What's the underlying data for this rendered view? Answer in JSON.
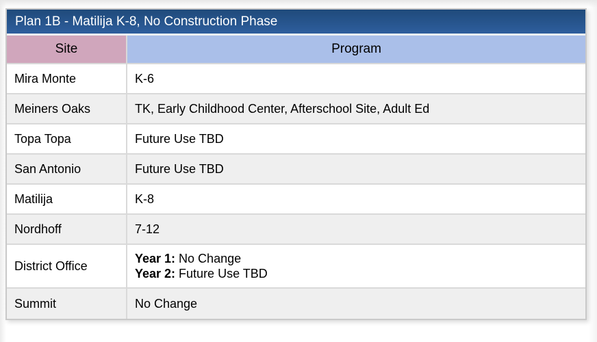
{
  "title": "Plan 1B - Matilija K-8, No Construction Phase",
  "columns": {
    "site": "Site",
    "program": "Program"
  },
  "rows": [
    {
      "site": "Mira Monte",
      "program": "K-6"
    },
    {
      "site": "Meiners Oaks",
      "program": "TK, Early Childhood Center, Afterschool Site, Adult Ed"
    },
    {
      "site": "Topa Topa",
      "program": "Future Use TBD"
    },
    {
      "site": "San Antonio",
      "program": "Future Use TBD"
    },
    {
      "site": "Matilija",
      "program": "K-8"
    },
    {
      "site": "Nordhoff",
      "program": "7-12"
    },
    {
      "site": "District Office",
      "program_lines": [
        {
          "label": "Year 1:",
          "text": " No Change"
        },
        {
          "label": "Year 2:",
          "text": " Future Use TBD"
        }
      ]
    },
    {
      "site": "Summit",
      "program": "No Change"
    }
  ],
  "colors": {
    "c-title-top": "#1f4a7a",
    "c-title-bottom": "#2e5e9d",
    "c-site-header": "#d0a6bc",
    "c-program-header": "#aabfe9",
    "c-row-alt": "#efefef",
    "c-row-white": "#ffffff",
    "c-border": "#d9d9d9",
    "c-outer-border": "#c9c9c9",
    "c-text": "#000000",
    "c-title-text": "#ffffff"
  }
}
